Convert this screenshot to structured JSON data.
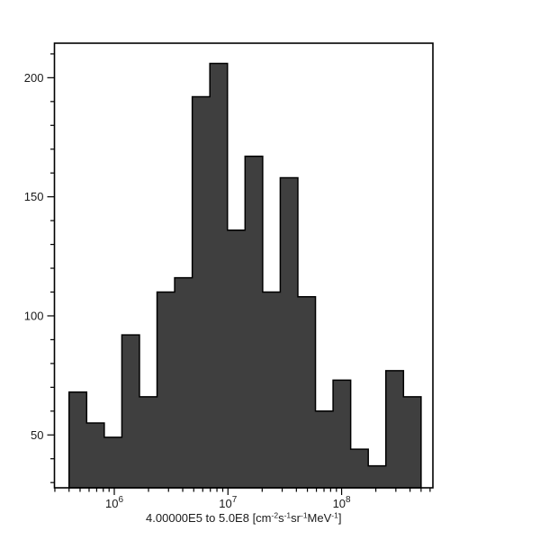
{
  "chart_data": {
    "type": "histogram",
    "title": "",
    "x_scale": "log",
    "xlabel_plain": "4.00000E5 to 5.0E8 [cm-2s-1sr-1MeV-1]",
    "xlabel_parts": [
      {
        "text": "4.00000E5 to 5.0E8 [cm",
        "sup": false
      },
      {
        "text": "-2",
        "sup": true
      },
      {
        "text": "s",
        "sup": false
      },
      {
        "text": "-1",
        "sup": true
      },
      {
        "text": "sr",
        "sup": false
      },
      {
        "text": "-1",
        "sup": true
      },
      {
        "text": "MeV",
        "sup": false
      },
      {
        "text": "-1",
        "sup": true
      },
      {
        "text": "]",
        "sup": false
      }
    ],
    "ylabel": "",
    "bins": {
      "start": 400000,
      "end": 500000000,
      "count": 20
    },
    "values": [
      68,
      55,
      49,
      92,
      66,
      110,
      116,
      192,
      206,
      136,
      167,
      110,
      158,
      108,
      60,
      73,
      44,
      37,
      77,
      66
    ],
    "x_major_ticks": [
      {
        "value": 1000000,
        "label_base": "10",
        "label_exp": "6"
      },
      {
        "value": 10000000,
        "label_base": "10",
        "label_exp": "7"
      },
      {
        "value": 100000000,
        "label_base": "10",
        "label_exp": "8"
      }
    ],
    "x_minor_tick_multiples": [
      2,
      3,
      4,
      5,
      6,
      7,
      8,
      9
    ],
    "y_major_ticks": [
      50,
      100,
      150,
      200
    ],
    "y_minor_tick_step": 10,
    "xlim_log10": [
      5.4735,
      8.803
    ],
    "ylim": [
      27.8,
      214.5
    ],
    "grid": false,
    "legend": null,
    "colors": {
      "bar_fill": "#3f3f3f",
      "bar_stroke": "#000000",
      "axis_stroke": "#000000",
      "text": "#1a1a1a",
      "background": "#ffffff"
    }
  }
}
